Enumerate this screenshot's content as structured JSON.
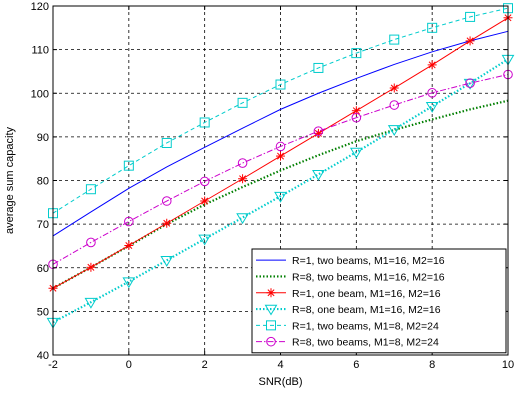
{
  "chart_data": {
    "type": "line",
    "title": "",
    "xlabel": "SNR(dB)",
    "ylabel": "average sum capacity",
    "xlim": [
      -2,
      10
    ],
    "ylim": [
      40,
      120
    ],
    "xticks": [
      -2,
      0,
      2,
      4,
      6,
      8,
      10
    ],
    "yticks": [
      40,
      50,
      60,
      70,
      80,
      90,
      100,
      110,
      120
    ],
    "xtick_labels": [
      "-2",
      "0",
      "2",
      "4",
      "6",
      "8",
      "10"
    ],
    "ytick_labels": [
      "40",
      "50",
      "60",
      "70",
      "80",
      "90",
      "100",
      "110",
      "120"
    ],
    "grid": true,
    "legend_position": "bottom-right",
    "x": [
      -2,
      -1,
      0,
      1,
      2,
      3,
      4,
      5,
      6,
      7,
      8,
      9,
      10
    ],
    "series": [
      {
        "name": "R=1, two beams, M1=16, M2=16",
        "color": "#0000ff",
        "line": "solid",
        "marker": "none",
        "values": [
          67.3,
          72.8,
          78.2,
          83.1,
          87.6,
          92.0,
          96.3,
          100.0,
          103.4,
          106.6,
          109.5,
          112.0,
          114.2
        ]
      },
      {
        "name": "R=8, two beams, M1=16, M2=16",
        "color": "#007f00",
        "line": "dotted",
        "marker": "none",
        "values": [
          55.3,
          60.1,
          65.0,
          70.0,
          74.5,
          78.5,
          82.3,
          85.8,
          89.0,
          91.6,
          94.0,
          96.3,
          98.3
        ]
      },
      {
        "name": "R=1, one beam, M1=16, M2=16",
        "color": "#ff0000",
        "line": "solid",
        "marker": "star",
        "values": [
          55.3,
          60.1,
          65.1,
          70.2,
          75.3,
          80.4,
          85.6,
          90.8,
          96.0,
          101.2,
          106.5,
          112.0,
          117.3
        ]
      },
      {
        "name": "R=8, one beam, M1=16, M2=16",
        "color": "#00cccc",
        "line": "dotted",
        "marker": "triangle-down",
        "values": [
          47.5,
          52.1,
          56.8,
          61.7,
          66.6,
          71.5,
          76.4,
          81.4,
          86.5,
          91.7,
          97.0,
          102.3,
          107.8
        ]
      },
      {
        "name": "R=1, two beams, M1=8, M2=24",
        "color": "#00cccc",
        "line": "dashed",
        "marker": "square",
        "values": [
          72.5,
          78.0,
          83.4,
          88.6,
          93.3,
          97.8,
          102.0,
          105.8,
          109.2,
          112.3,
          115.0,
          117.5,
          119.5
        ]
      },
      {
        "name": "R=8, two beams, M1=8, M2=24",
        "color": "#cc00cc",
        "line": "dashdot",
        "marker": "circle",
        "values": [
          60.8,
          65.8,
          70.6,
          75.3,
          79.8,
          84.0,
          87.8,
          91.3,
          94.4,
          97.3,
          100.1,
          102.3,
          104.3
        ]
      }
    ]
  }
}
